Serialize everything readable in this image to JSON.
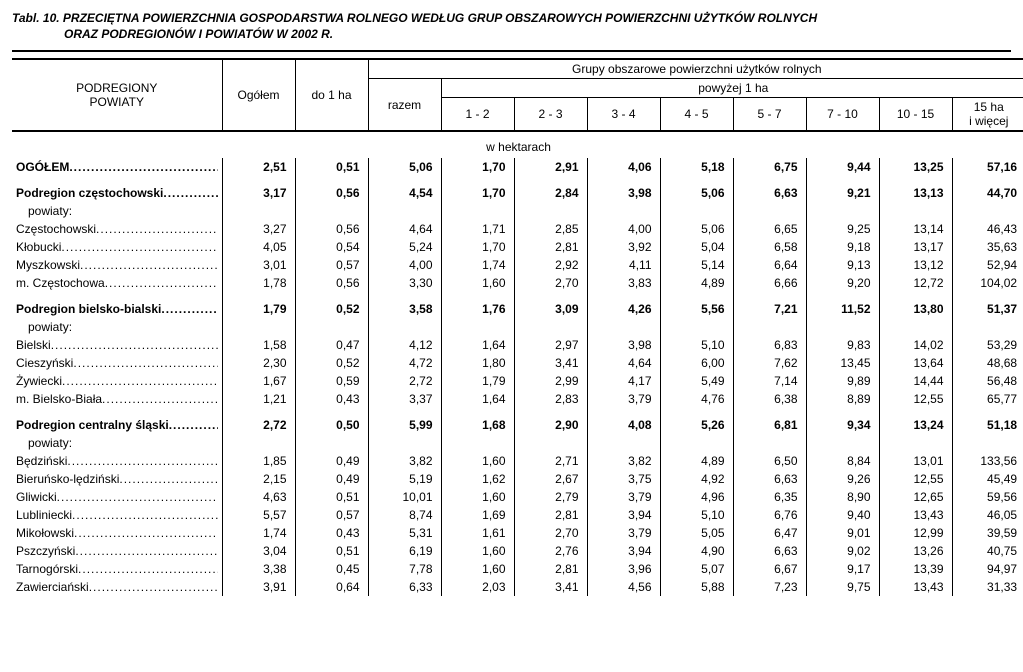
{
  "title_line1": "Tabl. 10. PRZECIĘTNA POWIERZCHNIA GOSPODARSTWA ROLNEGO WEDŁUG GRUP OBSZAROWYCH POWIERZCHNI UŻYTKÓW ROLNYCH",
  "title_line2": "ORAZ PODREGIONÓW I POWIATÓW W 2002 R.",
  "header": {
    "col_region1": "PODREGIONY",
    "col_region2": "POWIATY",
    "col_total": "Ogółem",
    "col_upto1": "do 1 ha",
    "group_top": "Grupy obszarowe powierzchni użytków rolnych",
    "group_over1": "powyżej 1 ha",
    "col_razem": "razem",
    "col_1_2": "1 - 2",
    "col_2_3": "2 - 3",
    "col_3_4": "3 - 4",
    "col_4_5": "4 - 5",
    "col_5_7": "5 - 7",
    "col_7_10": "7 - 10",
    "col_10_15": "10 - 15",
    "col_15p_a": "15 ha",
    "col_15p_b": "i więcej",
    "unit": "w hektarach"
  },
  "rows": [
    {
      "label": "OGÓŁEM",
      "bold": true,
      "vals": [
        "2,51",
        "0,51",
        "5,06",
        "1,70",
        "2,91",
        "4,06",
        "5,18",
        "6,75",
        "9,44",
        "13,25",
        "57,16"
      ]
    },
    {
      "label": "Podregion częstochowski",
      "bold": true,
      "section": true,
      "vals": [
        "3,17",
        "0,56",
        "4,54",
        "1,70",
        "2,84",
        "3,98",
        "5,06",
        "6,63",
        "9,21",
        "13,13",
        "44,70"
      ]
    },
    {
      "label": "powiaty:",
      "plain": true
    },
    {
      "label": "Częstochowski",
      "vals": [
        "3,27",
        "0,56",
        "4,64",
        "1,71",
        "2,85",
        "4,00",
        "5,06",
        "6,65",
        "9,25",
        "13,14",
        "46,43"
      ]
    },
    {
      "label": "Kłobucki",
      "vals": [
        "4,05",
        "0,54",
        "5,24",
        "1,70",
        "2,81",
        "3,92",
        "5,04",
        "6,58",
        "9,18",
        "13,17",
        "35,63"
      ]
    },
    {
      "label": "Myszkowski",
      "vals": [
        "3,01",
        "0,57",
        "4,00",
        "1,74",
        "2,92",
        "4,11",
        "5,14",
        "6,64",
        "9,13",
        "13,12",
        "52,94"
      ]
    },
    {
      "label": "m. Częstochowa",
      "vals": [
        "1,78",
        "0,56",
        "3,30",
        "1,60",
        "2,70",
        "3,83",
        "4,89",
        "6,66",
        "9,20",
        "12,72",
        "104,02"
      ]
    },
    {
      "label": "Podregion bielsko-bialski",
      "bold": true,
      "section": true,
      "vals": [
        "1,79",
        "0,52",
        "3,58",
        "1,76",
        "3,09",
        "4,26",
        "5,56",
        "7,21",
        "11,52",
        "13,80",
        "51,37"
      ]
    },
    {
      "label": "powiaty:",
      "plain": true
    },
    {
      "label": "Bielski",
      "vals": [
        "1,58",
        "0,47",
        "4,12",
        "1,64",
        "2,97",
        "3,98",
        "5,10",
        "6,83",
        "9,83",
        "14,02",
        "53,29"
      ]
    },
    {
      "label": "Cieszyński",
      "vals": [
        "2,30",
        "0,52",
        "4,72",
        "1,80",
        "3,41",
        "4,64",
        "6,00",
        "7,62",
        "13,45",
        "13,64",
        "48,68"
      ]
    },
    {
      "label": "Żywiecki",
      "vals": [
        "1,67",
        "0,59",
        "2,72",
        "1,79",
        "2,99",
        "4,17",
        "5,49",
        "7,14",
        "9,89",
        "14,44",
        "56,48"
      ]
    },
    {
      "label": "m. Bielsko-Biała",
      "vals": [
        "1,21",
        "0,43",
        "3,37",
        "1,64",
        "2,83",
        "3,79",
        "4,76",
        "6,38",
        "8,89",
        "12,55",
        "65,77"
      ]
    },
    {
      "label": "Podregion centralny śląski",
      "bold": true,
      "section": true,
      "vals": [
        "2,72",
        "0,50",
        "5,99",
        "1,68",
        "2,90",
        "4,08",
        "5,26",
        "6,81",
        "9,34",
        "13,24",
        "51,18"
      ]
    },
    {
      "label": "powiaty:",
      "plain": true
    },
    {
      "label": "Będziński",
      "vals": [
        "1,85",
        "0,49",
        "3,82",
        "1,60",
        "2,71",
        "3,82",
        "4,89",
        "6,50",
        "8,84",
        "13,01",
        "133,56"
      ]
    },
    {
      "label": "Bieruńsko-lędziński",
      "vals": [
        "2,15",
        "0,49",
        "5,19",
        "1,62",
        "2,67",
        "3,75",
        "4,92",
        "6,63",
        "9,26",
        "12,55",
        "45,49"
      ]
    },
    {
      "label": "Gliwicki",
      "vals": [
        "4,63",
        "0,51",
        "10,01",
        "1,60",
        "2,79",
        "3,79",
        "4,96",
        "6,35",
        "8,90",
        "12,65",
        "59,56"
      ]
    },
    {
      "label": "Lubliniecki",
      "vals": [
        "5,57",
        "0,57",
        "8,74",
        "1,69",
        "2,81",
        "3,94",
        "5,10",
        "6,76",
        "9,40",
        "13,43",
        "46,05"
      ]
    },
    {
      "label": "Mikołowski",
      "vals": [
        "1,74",
        "0,43",
        "5,31",
        "1,61",
        "2,70",
        "3,79",
        "5,05",
        "6,47",
        "9,01",
        "12,99",
        "39,59"
      ]
    },
    {
      "label": "Pszczyński",
      "vals": [
        "3,04",
        "0,51",
        "6,19",
        "1,60",
        "2,76",
        "3,94",
        "4,90",
        "6,63",
        "9,02",
        "13,26",
        "40,75"
      ]
    },
    {
      "label": "Tarnogórski",
      "vals": [
        "3,38",
        "0,45",
        "7,78",
        "1,60",
        "2,81",
        "3,96",
        "5,07",
        "6,67",
        "9,17",
        "13,39",
        "94,97"
      ]
    },
    {
      "label": "Zawierciański",
      "vals": [
        "3,91",
        "0,64",
        "6,33",
        "2,03",
        "3,41",
        "4,56",
        "5,88",
        "7,23",
        "9,75",
        "13,43",
        "31,33"
      ]
    }
  ]
}
